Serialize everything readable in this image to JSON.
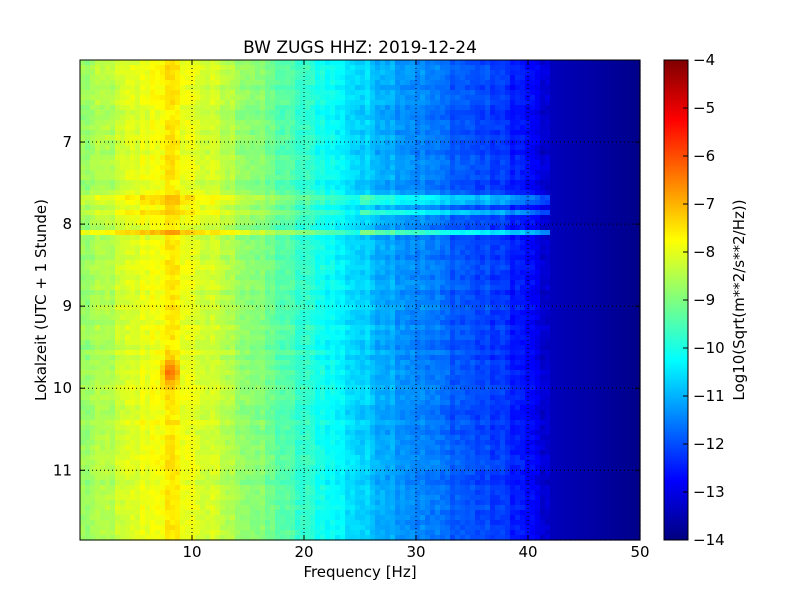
{
  "chart_data": {
    "type": "heatmap",
    "title": "BW ZUGS HHZ: 2019-12-24",
    "xlabel": "Frequency [Hz]",
    "ylabel": "Lokalzeit (UTC + 1 Stunde)",
    "xlim": [
      0,
      50
    ],
    "ylim": [
      6.0,
      11.85
    ],
    "y_inverted": true,
    "x_ticks": [
      10,
      20,
      30,
      40,
      50
    ],
    "y_ticks": [
      7,
      8,
      9,
      10,
      11
    ],
    "grid": true,
    "colormap": "jet",
    "colorbar": {
      "label": "Log10(Sqrt(m**2/s**2/Hz))",
      "range": [
        -14,
        -4
      ],
      "ticks": [
        -4,
        -5,
        -6,
        -7,
        -8,
        -9,
        -10,
        -11,
        -12,
        -13,
        -14
      ]
    },
    "frequency_profile_hz": [
      0,
      2,
      5,
      8,
      10,
      12,
      15,
      18,
      20,
      22,
      25,
      28,
      30,
      33,
      35,
      38,
      40,
      42,
      50
    ],
    "frequency_profile_db": [
      -8.8,
      -8.6,
      -8.1,
      -7.6,
      -8.0,
      -8.3,
      -8.8,
      -9.4,
      -9.8,
      -10.1,
      -10.7,
      -11.1,
      -11.4,
      -11.8,
      -12.0,
      -12.3,
      -12.7,
      -13.4,
      -13.9
    ],
    "cutoff_hz": 42,
    "bands": [
      {
        "time": 7.7,
        "level": 0.45,
        "max_hz": 42
      },
      {
        "time": 7.85,
        "level": 0.5,
        "max_hz": 43
      },
      {
        "time": 8.12,
        "level": 0.65,
        "max_hz": 43
      }
    ],
    "hotspot": {
      "freq_hz": 8,
      "time": 9.8,
      "level": 1.3
    }
  }
}
